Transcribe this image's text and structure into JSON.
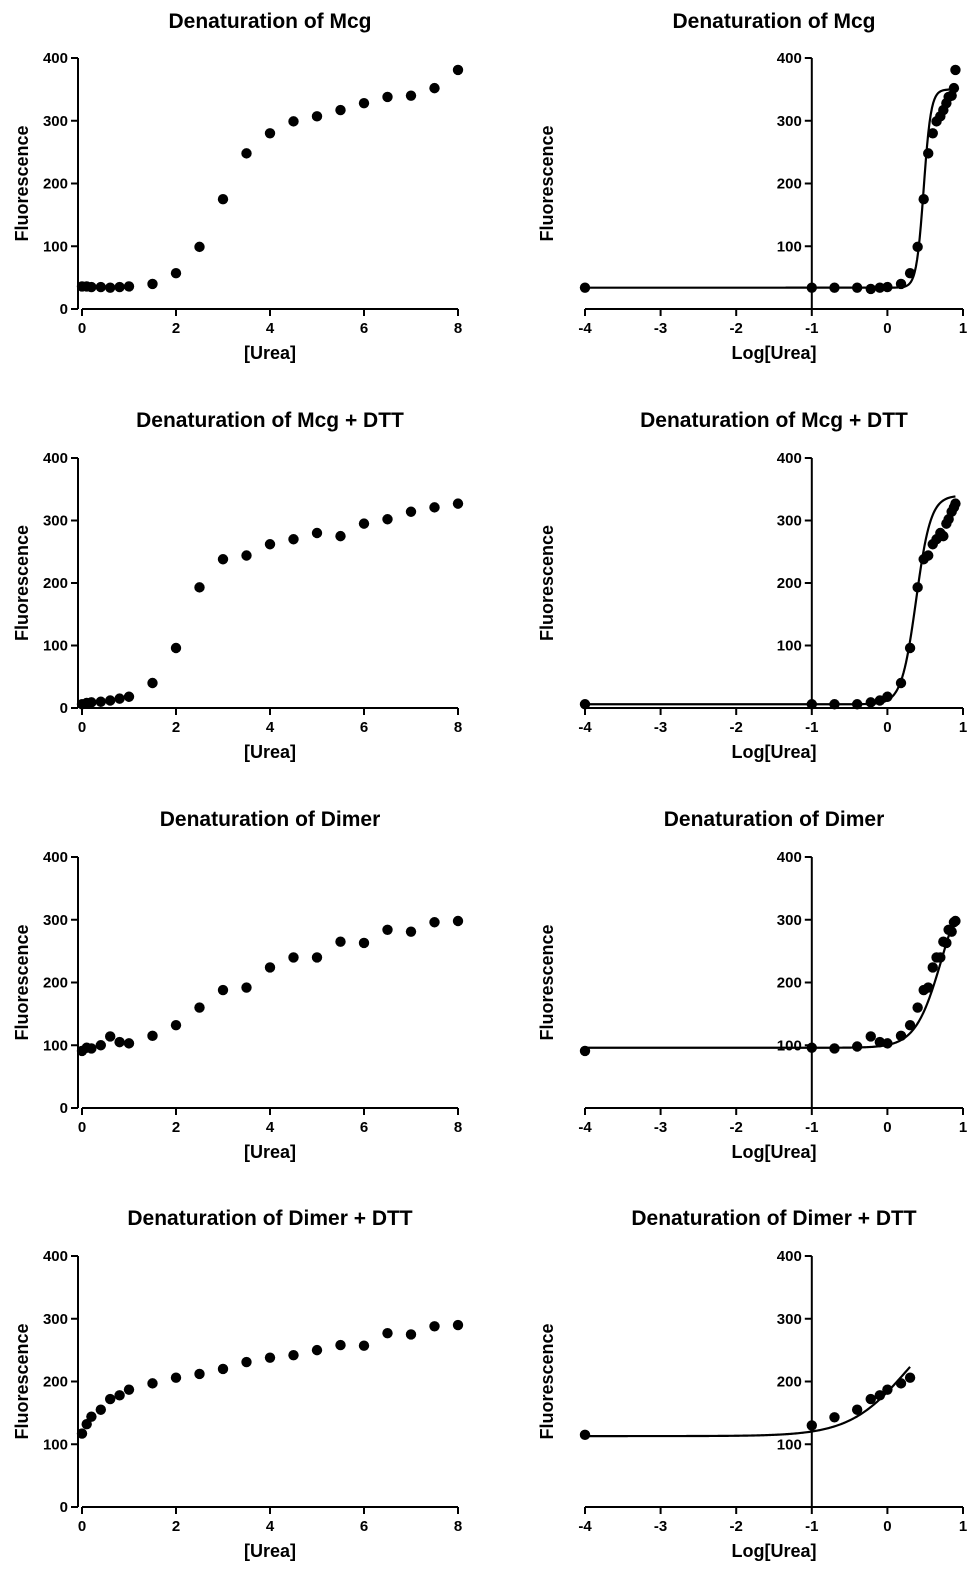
{
  "chart_data": [
    {
      "type": "scatter",
      "title": "Denaturation of Mcg",
      "xlabel": "[Urea]",
      "ylabel": "Fluorescence",
      "xlim": [
        0,
        8
      ],
      "ylim": [
        0,
        400
      ],
      "xticks": [
        0,
        2,
        4,
        6,
        8
      ],
      "yticks": [
        0,
        100,
        200,
        300,
        400
      ],
      "series": [
        {
          "x": [
            0,
            0.1,
            0.2,
            0.4,
            0.6,
            0.8,
            1,
            1.5,
            2,
            2.5,
            3,
            3.5,
            4,
            4.5,
            5,
            5.5,
            6,
            6.5,
            7,
            7.5,
            8
          ],
          "y": [
            36,
            36,
            35,
            35,
            34,
            35,
            36,
            40,
            57,
            99,
            175,
            248,
            280,
            299,
            307,
            317,
            328,
            338,
            340,
            352,
            381
          ]
        }
      ]
    },
    {
      "type": "scatter",
      "title": "Denaturation of Mcg",
      "xlabel": "Log[Urea]",
      "ylabel": "Fluorescence",
      "xlim": [
        -4,
        1
      ],
      "ylim": [
        0,
        400
      ],
      "xticks": [
        -4,
        -3,
        -2,
        -1,
        0,
        1
      ],
      "yticks": [
        100,
        200,
        300,
        400
      ],
      "yaxis_at_x": -1,
      "fit": {
        "bottom": 34,
        "top": 350,
        "logEC50": 0.48,
        "hill": 9
      },
      "series": [
        {
          "x": [
            -4,
            -1,
            -0.7,
            -0.4,
            -0.22,
            -0.1,
            0,
            0.18,
            0.3,
            0.4,
            0.48,
            0.54,
            0.6,
            0.65,
            0.7,
            0.74,
            0.78,
            0.81,
            0.85,
            0.88,
            0.9
          ],
          "y": [
            34,
            34,
            34,
            34,
            32,
            34,
            35,
            40,
            57,
            99,
            175,
            248,
            280,
            299,
            307,
            317,
            328,
            338,
            340,
            352,
            381
          ]
        }
      ]
    },
    {
      "type": "scatter",
      "title": "Denaturation of Mcg + DTT",
      "xlabel": "[Urea]",
      "ylabel": "Fluorescence",
      "xlim": [
        0,
        8
      ],
      "ylim": [
        0,
        400
      ],
      "xticks": [
        0,
        2,
        4,
        6,
        8
      ],
      "yticks": [
        0,
        100,
        200,
        300,
        400
      ],
      "series": [
        {
          "x": [
            0,
            0.1,
            0.2,
            0.4,
            0.6,
            0.8,
            1,
            1.5,
            2,
            2.5,
            3,
            3.5,
            4,
            4.5,
            5,
            5.5,
            6,
            6.5,
            7,
            7.5,
            8
          ],
          "y": [
            6,
            8,
            9,
            10,
            12,
            15,
            18,
            40,
            96,
            193,
            238,
            244,
            262,
            270,
            280,
            275,
            295,
            302,
            314,
            321,
            327
          ]
        }
      ]
    },
    {
      "type": "scatter",
      "title": "Denaturation of Mcg + DTT",
      "xlabel": "Log[Urea]",
      "ylabel": "Fluorescence",
      "xlim": [
        -4,
        1
      ],
      "ylim": [
        0,
        400
      ],
      "xticks": [
        -4,
        -3,
        -2,
        -1,
        0,
        1
      ],
      "yticks": [
        100,
        200,
        300,
        400
      ],
      "yaxis_at_x": -1,
      "fit": {
        "bottom": 6,
        "top": 340,
        "logEC50": 0.38,
        "hill": 4.5
      },
      "series": [
        {
          "x": [
            -4,
            -1,
            -0.7,
            -0.4,
            -0.22,
            -0.1,
            0,
            0.18,
            0.3,
            0.4,
            0.48,
            0.54,
            0.6,
            0.65,
            0.7,
            0.74,
            0.78,
            0.81,
            0.85,
            0.88,
            0.9
          ],
          "y": [
            6,
            6,
            6,
            6,
            9,
            12,
            18,
            40,
            96,
            193,
            238,
            244,
            262,
            270,
            280,
            275,
            295,
            302,
            314,
            321,
            327
          ]
        }
      ]
    },
    {
      "type": "scatter",
      "title": "Denaturation of Dimer",
      "xlabel": "[Urea]",
      "ylabel": "Fluorescence",
      "xlim": [
        0,
        8
      ],
      "ylim": [
        0,
        400
      ],
      "xticks": [
        0,
        2,
        4,
        6,
        8
      ],
      "yticks": [
        0,
        100,
        200,
        300,
        400
      ],
      "series": [
        {
          "x": [
            0,
            0.1,
            0.2,
            0.4,
            0.6,
            0.8,
            1,
            1.5,
            2,
            2.5,
            3,
            3.5,
            4,
            4.5,
            5,
            5.5,
            6,
            6.5,
            7,
            7.5,
            8
          ],
          "y": [
            91,
            96,
            95,
            100,
            114,
            105,
            103,
            115,
            132,
            160,
            188,
            192,
            224,
            240,
            240,
            265,
            263,
            284,
            281,
            296,
            298
          ]
        }
      ]
    },
    {
      "type": "scatter",
      "title": "Denaturation of Dimer",
      "xlabel": "Log[Urea]",
      "ylabel": "Fluorescence",
      "xlim": [
        -4,
        1
      ],
      "ylim": [
        0,
        400
      ],
      "xticks": [
        -4,
        -3,
        -2,
        -1,
        0,
        1
      ],
      "yticks": [
        100,
        200,
        300,
        400
      ],
      "yaxis_at_x": -1,
      "fit": {
        "bottom": 96,
        "top": 380,
        "logEC50": 0.72,
        "hill": 2.5
      },
      "series": [
        {
          "x": [
            -4,
            -1,
            -0.7,
            -0.4,
            -0.22,
            -0.1,
            0,
            0.18,
            0.3,
            0.4,
            0.48,
            0.54,
            0.6,
            0.65,
            0.7,
            0.74,
            0.78,
            0.81,
            0.85,
            0.88,
            0.9
          ],
          "y": [
            91,
            96,
            95,
            98,
            114,
            105,
            103,
            115,
            132,
            160,
            188,
            192,
            224,
            240,
            240,
            265,
            263,
            284,
            281,
            296,
            298
          ]
        }
      ]
    },
    {
      "type": "scatter",
      "title": "Denaturation of Dimer + DTT",
      "xlabel": "[Urea]",
      "ylabel": "Fluorescence",
      "xlim": [
        0,
        8
      ],
      "ylim": [
        0,
        400
      ],
      "xticks": [
        0,
        2,
        4,
        6,
        8
      ],
      "yticks": [
        0,
        100,
        200,
        300,
        400
      ],
      "series": [
        {
          "x": [
            0,
            0.1,
            0.2,
            0.4,
            0.6,
            0.8,
            1,
            1.5,
            2,
            2.5,
            3,
            3.5,
            4,
            4.5,
            5,
            5.5,
            6,
            6.5,
            7,
            7.5,
            8
          ],
          "y": [
            117,
            132,
            144,
            155,
            172,
            178,
            187,
            197,
            206,
            212,
            220,
            231,
            238,
            242,
            250,
            258,
            257,
            277,
            275,
            288,
            290
          ]
        }
      ]
    },
    {
      "type": "scatter",
      "title": "Denaturation of Dimer + DTT",
      "xlabel": "Log[Urea]",
      "ylabel": "Fluorescence",
      "xlim": [
        -4,
        1
      ],
      "ylim": [
        0,
        400
      ],
      "xticks": [
        -4,
        -3,
        -2,
        -1,
        0,
        1
      ],
      "yticks": [
        100,
        200,
        300,
        400
      ],
      "yaxis_at_x": -1,
      "fit": {
        "bottom": 113,
        "top": 320,
        "logEC50": 0.25,
        "hill": 1.15,
        "xmax": 0.3
      },
      "series": [
        {
          "x": [
            -4,
            -1,
            -0.7,
            -0.4,
            -0.22,
            -0.1,
            0,
            0.18,
            0.3
          ],
          "y": [
            115,
            130,
            143,
            155,
            172,
            178,
            187,
            197,
            206
          ]
        }
      ]
    }
  ]
}
